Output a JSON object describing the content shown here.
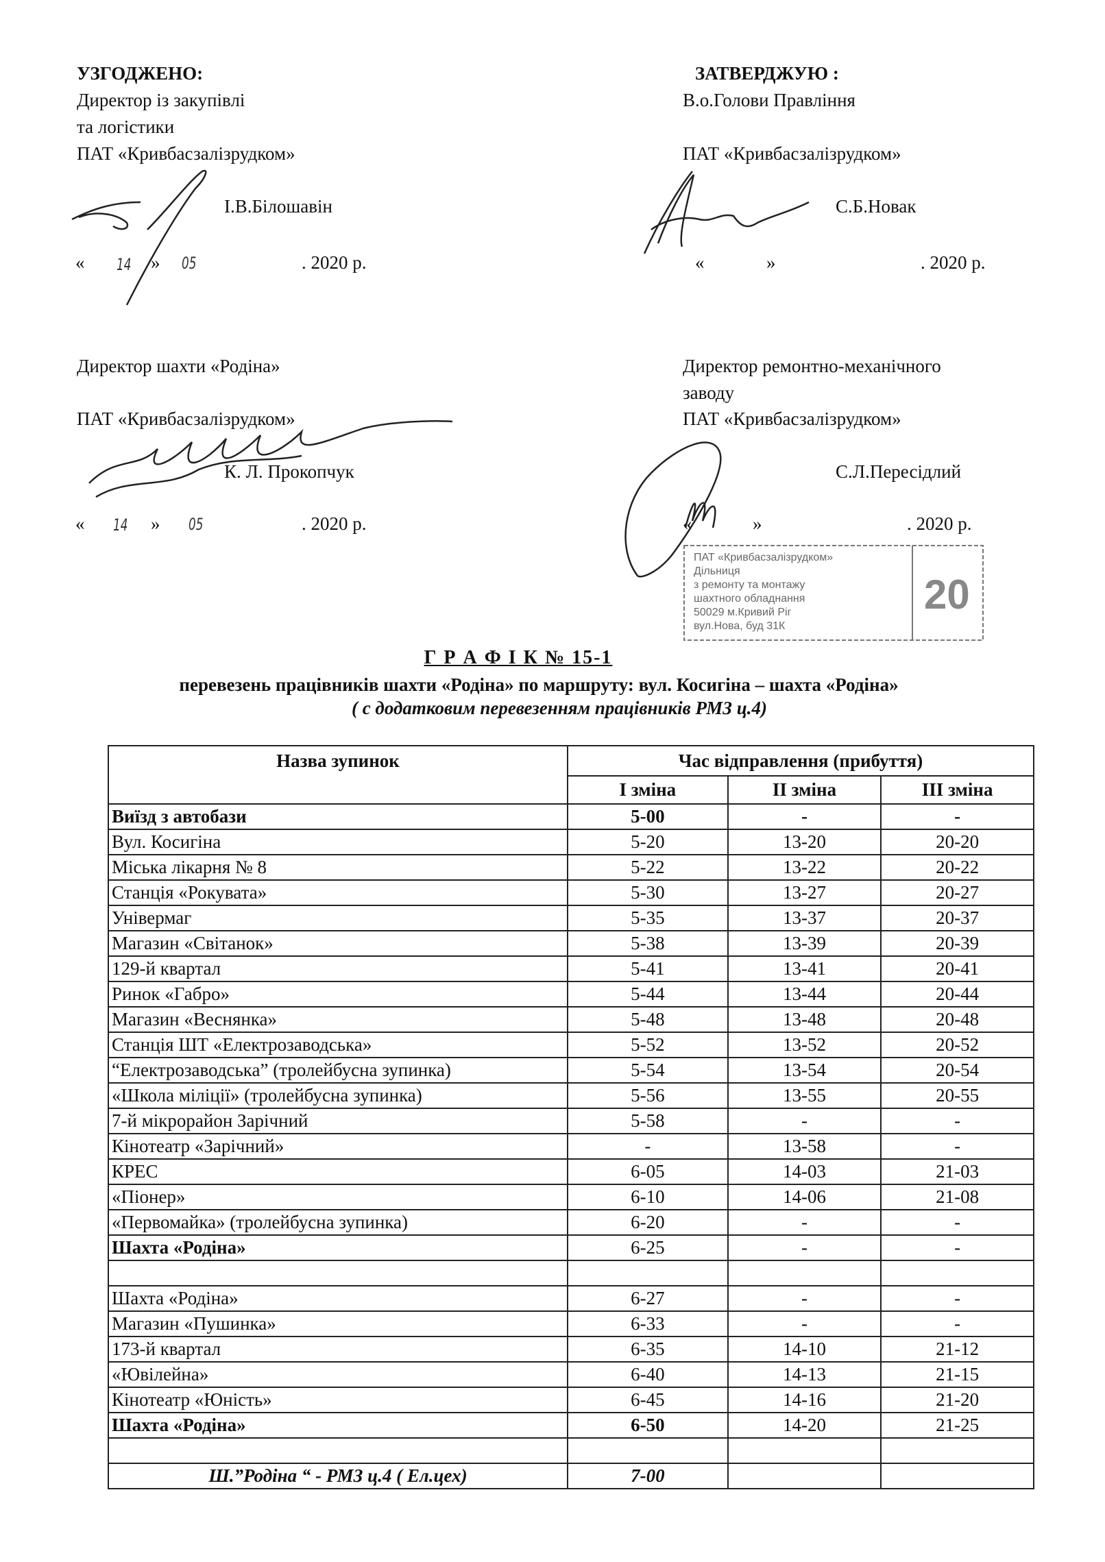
{
  "approvals": {
    "left_heading": "УЗГОДЖЕНО:",
    "right_heading": "ЗАТВЕРДЖУЮ :",
    "block1_left": {
      "lines": [
        "Директор із закупівлі",
        "та логістики",
        "ПАТ «Кривбасзалізрудком»"
      ],
      "name": "І.В.Білошавін",
      "date_open": "«",
      "date_day": "14",
      "date_close": "»",
      "date_month": "05",
      "date_year": ". 2020 р."
    },
    "block1_right": {
      "lines": [
        "В.о.Голови    Правління",
        "ПАТ «Кривбасзалізрудком»"
      ],
      "name": "С.Б.Новак",
      "date_open": "«",
      "date_close": "»",
      "date_year": ". 2020 р."
    },
    "block2_left": {
      "lines": [
        "Директор шахти «Родіна»",
        "ПАТ «Кривбасзалізрудком»"
      ],
      "name": "К. Л. Прокопчук",
      "date_open": "«",
      "date_day": "14",
      "date_close": "»",
      "date_month": "05",
      "date_year": ". 2020 р."
    },
    "block2_right": {
      "lines": [
        "Директор ремонтно-механічного",
        "заводу",
        "ПАТ «Кривбасзалізрудком»"
      ],
      "name": "С.Л.Пересідлий",
      "date_open": "«",
      "date_close": "»",
      "date_year": ". 2020 р.",
      "stamp": {
        "lines": [
          "ПАТ «Кривбасзалізрудком»",
          "Дільниця",
          "з ремонту та монтажу",
          "шахтного обладнання",
          "50029 м.Кривий Ріг",
          "вул.Нова, буд 31К"
        ],
        "number": "20"
      }
    }
  },
  "heading": {
    "title": "Г Р А Ф І К   № 15-1",
    "subtitle": "перевезень працівників шахти «Родіна»  по маршруту:   вул. Косигіна – шахта «Родіна»",
    "note": "( с додатковим перевезенням працівників РМЗ ц.4)"
  },
  "table": {
    "col_stop": "Назва зупинок",
    "col_time": "Час відправлення (прибуття)",
    "shifts": [
      "I зміна",
      "II зміна",
      "III зміна"
    ],
    "rows": [
      {
        "name": "Виїзд з автобази",
        "t": [
          "5-00",
          "-",
          "-"
        ],
        "style": "bold"
      },
      {
        "name": "Вул. Косигіна",
        "t": [
          "5-20",
          "13-20",
          "20-20"
        ]
      },
      {
        "name": "Міська лікарня № 8",
        "t": [
          "5-22",
          "13-22",
          "20-22"
        ]
      },
      {
        "name": "Станція «Рокувата»",
        "t": [
          "5-30",
          "13-27",
          "20-27"
        ]
      },
      {
        "name": "Універмаг",
        "t": [
          "5-35",
          "13-37",
          "20-37"
        ]
      },
      {
        "name": "Магазин «Світанок»",
        "t": [
          "5-38",
          "13-39",
          "20-39"
        ]
      },
      {
        "name": "129-й квартал",
        "t": [
          "5-41",
          "13-41",
          "20-41"
        ]
      },
      {
        "name": "Ринок «Габро»",
        "t": [
          "5-44",
          "13-44",
          "20-44"
        ]
      },
      {
        "name": "Магазин «Веснянка»",
        "t": [
          "5-48",
          "13-48",
          "20-48"
        ]
      },
      {
        "name": "Станція ШТ «Електрозаводська»",
        "t": [
          "5-52",
          "13-52",
          "20-52"
        ]
      },
      {
        "name": "“Електрозаводська” (тролейбусна зупинка)",
        "t": [
          "5-54",
          "13-54",
          "20-54"
        ]
      },
      {
        "name": "«Школа міліції» (тролейбусна зупинка)",
        "t": [
          "5-56",
          "13-55",
          "20-55"
        ]
      },
      {
        "name": "7-й мікрорайон Зарічний",
        "t": [
          "5-58",
          "-",
          "-"
        ]
      },
      {
        "name": "Кінотеатр «Зарічний»",
        "t": [
          "-",
          "13-58",
          "-"
        ]
      },
      {
        "name": "КРЕС",
        "t": [
          "6-05",
          "14-03",
          "21-03"
        ]
      },
      {
        "name": "«Піонер»",
        "t": [
          "6-10",
          "14-06",
          "21-08"
        ]
      },
      {
        "name": "«Первомайка» (тролейбусна зупинка)",
        "t": [
          "6-20",
          "-",
          "-"
        ]
      },
      {
        "name": "Шахта «Родіна»",
        "t": [
          "6-25",
          "-",
          "-"
        ],
        "style": "bold-name"
      },
      {
        "name": "",
        "t": [
          "",
          "",
          ""
        ]
      },
      {
        "name": "Шахта «Родіна»",
        "t": [
          "6-27",
          "-",
          "-"
        ]
      },
      {
        "name": "Магазин «Пушинка»",
        "t": [
          "6-33",
          "-",
          "-"
        ]
      },
      {
        "name": "173-й квартал",
        "t": [
          "6-35",
          "14-10",
          "21-12"
        ]
      },
      {
        "name": "«Ювілейна»",
        "t": [
          "6-40",
          "14-13",
          "21-15"
        ]
      },
      {
        "name": "Кінотеатр «Юність»",
        "t": [
          "6-45",
          "14-16",
          "21-20"
        ]
      },
      {
        "name": "Шахта «Родіна»",
        "t": [
          "6-50",
          "14-20",
          "21-25"
        ],
        "style": "bold-first"
      },
      {
        "name": "",
        "t": [
          "",
          "",
          ""
        ]
      },
      {
        "name": "Ш.”Родіна “ -  РМЗ ц.4 ( Ел.цех)",
        "t": [
          "7-00",
          "",
          ""
        ],
        "style": "italic"
      }
    ]
  }
}
